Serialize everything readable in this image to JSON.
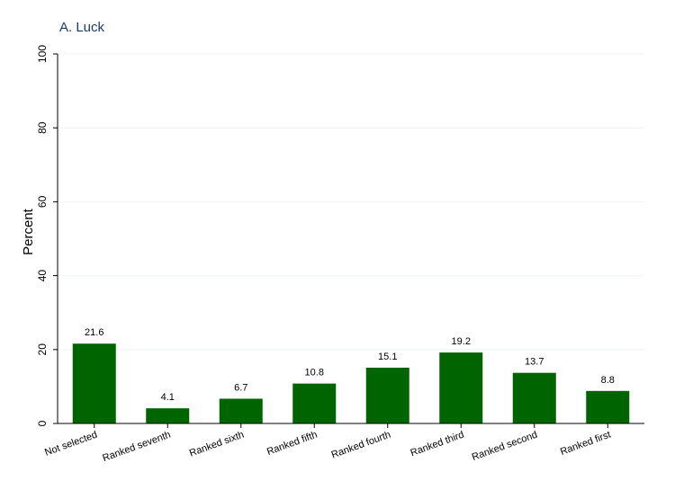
{
  "chart_data": {
    "type": "bar",
    "title": "A. Luck",
    "ylabel": "Percent",
    "xlabel": "",
    "ylim": [
      0,
      100
    ],
    "yticks": [
      0,
      20,
      40,
      60,
      80,
      100
    ],
    "grid": true,
    "bar_color": "#006400",
    "categories": [
      "Not selected",
      "Ranked seventh",
      "Ranked sixth",
      "Ranked fifth",
      "Ranked fourth",
      "Ranked third",
      "Ranked second",
      "Ranked first"
    ],
    "values": [
      21.6,
      4.1,
      6.7,
      10.8,
      15.1,
      19.2,
      13.7,
      8.8
    ],
    "value_labels": [
      "21.6",
      "4.1",
      "6.7",
      "10.8",
      "15.1",
      "19.2",
      "13.7",
      "8.8"
    ]
  }
}
